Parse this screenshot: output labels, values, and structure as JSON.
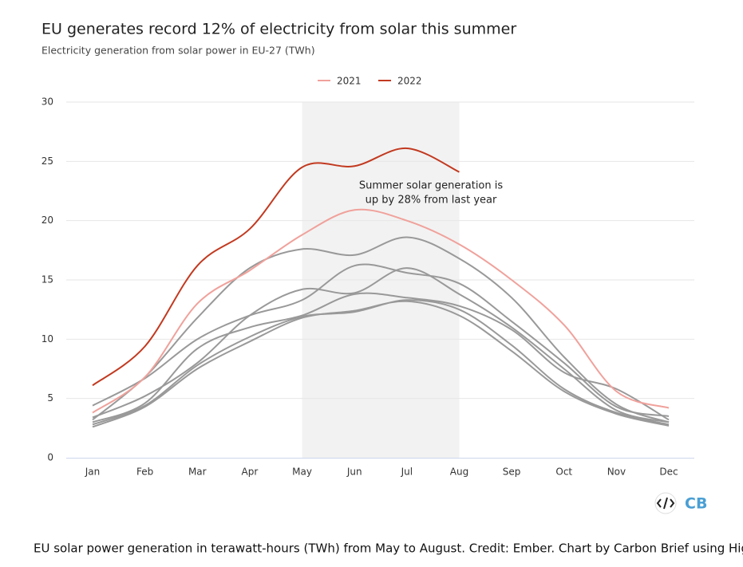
{
  "chart_data": {
    "type": "line",
    "title": "EU generates record 12% of electricity from solar this summer",
    "subtitle": "Electricity generation from solar power in EU-27 (TWh)",
    "categories": [
      "Jan",
      "Feb",
      "Mar",
      "Apr",
      "May",
      "Jun",
      "Jul",
      "Aug",
      "Sep",
      "Oct",
      "Nov",
      "Dec"
    ],
    "ylim": [
      0,
      30
    ],
    "yticks": [
      0,
      5,
      10,
      15,
      20,
      25,
      30
    ],
    "grid": true,
    "legend": "top",
    "plot_band": {
      "from": "May",
      "to": "Aug",
      "color": "#f2f2f2"
    },
    "annotation": [
      "Summer solar generation is",
      "up by 28% from last year"
    ],
    "series": [
      {
        "color": "#999999",
        "values": [
          3.2,
          6.8,
          11.8,
          16.0,
          17.6,
          17.1,
          18.6,
          16.8,
          13.5,
          8.5,
          4.5,
          3.0
        ]
      },
      {
        "color": "#999999",
        "values": [
          4.4,
          6.7,
          10.0,
          12.0,
          13.3,
          16.2,
          15.6,
          14.7,
          11.5,
          8.0,
          4.3,
          3.5
        ]
      },
      {
        "color": "#999999",
        "values": [
          3.4,
          5.2,
          8.0,
          12.0,
          14.2,
          13.9,
          16.0,
          13.8,
          11.0,
          7.5,
          4.0,
          3.0
        ]
      },
      {
        "color": "#999999",
        "values": [
          3.0,
          4.6,
          9.2,
          11.0,
          12.0,
          13.8,
          13.5,
          12.8,
          10.8,
          7.2,
          5.8,
          3.2
        ]
      },
      {
        "color": "#999999",
        "values": [
          2.8,
          4.4,
          7.8,
          10.2,
          11.9,
          12.3,
          13.3,
          12.5,
          9.5,
          5.8,
          3.8,
          2.8
        ]
      },
      {
        "color": "#999999",
        "values": [
          2.6,
          4.3,
          7.5,
          9.8,
          11.8,
          12.4,
          13.2,
          12.0,
          9.0,
          5.6,
          3.7,
          2.7
        ]
      },
      {
        "name": "2021",
        "color": "#f0a19b",
        "values": [
          3.8,
          6.8,
          13.0,
          15.8,
          18.8,
          20.9,
          20.0,
          18.0,
          15.0,
          11.2,
          5.6,
          4.2
        ]
      },
      {
        "name": "2022",
        "color": "#c2391f",
        "values": [
          6.1,
          9.4,
          16.2,
          19.3,
          24.5,
          24.6,
          26.1,
          24.1,
          null,
          null,
          null,
          null
        ]
      }
    ],
    "logo": "CB",
    "caption": "EU solar power generation in terawatt-hours (TWh) from May to August. Credit: Ember. Chart by Carbon Brief using Highcharts."
  }
}
